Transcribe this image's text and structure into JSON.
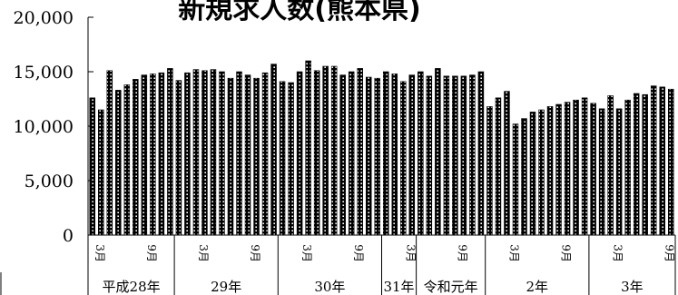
{
  "chart_data": {
    "type": "bar",
    "title": "新規求人数(熊本県)",
    "ylim": [
      0,
      20000
    ],
    "ytick_labels": [
      "0",
      "5,000",
      "10,000",
      "15,000",
      "20,000"
    ],
    "ytick_values": [
      0,
      5000,
      10000,
      15000,
      20000
    ],
    "grid": false,
    "bar_style": "black outline with white dotted fill",
    "month_labels": [
      "3月",
      "9月"
    ],
    "year_groups": [
      {
        "label": "平成28年",
        "start": 0,
        "count": 10
      },
      {
        "label": "29年",
        "start": 10,
        "count": 12
      },
      {
        "label": "30年",
        "start": 22,
        "count": 12
      },
      {
        "label": "31年",
        "start": 34,
        "count": 4
      },
      {
        "label": "令和元年",
        "start": 38,
        "count": 8
      },
      {
        "label": "2年",
        "start": 46,
        "count": 12
      },
      {
        "label": "3年",
        "start": 58,
        "count": 10
      }
    ],
    "month_ticks": [
      {
        "index": 0,
        "label": "3月"
      },
      {
        "index": 6,
        "label": "9月"
      },
      {
        "index": 12,
        "label": "3月"
      },
      {
        "index": 18,
        "label": "9月"
      },
      {
        "index": 24,
        "label": "3月"
      },
      {
        "index": 30,
        "label": "9月"
      },
      {
        "index": 36,
        "label": "3月"
      },
      {
        "index": 42,
        "label": "9月"
      },
      {
        "index": 48,
        "label": "3月"
      },
      {
        "index": 54,
        "label": "9月"
      },
      {
        "index": 60,
        "label": "3月"
      },
      {
        "index": 66,
        "label": "9月"
      }
    ],
    "values": [
      12600,
      11500,
      15100,
      13300,
      13800,
      14300,
      14700,
      14800,
      14900,
      15300,
      14200,
      14900,
      15200,
      15100,
      15200,
      15000,
      14400,
      15000,
      14700,
      14400,
      14900,
      15700,
      14100,
      14000,
      15000,
      16000,
      15100,
      15500,
      15500,
      14700,
      15000,
      15300,
      14500,
      14400,
      15000,
      14800,
      14100,
      14700,
      15000,
      14600,
      15300,
      14600,
      14600,
      14600,
      14700,
      15000,
      11800,
      12600,
      13200,
      10200,
      10700,
      11300,
      11500,
      11800,
      12000,
      12200,
      12400,
      12600,
      12100,
      11600,
      12800,
      11600,
      12400,
      13000,
      12900,
      13700,
      13600,
      13400
    ]
  }
}
